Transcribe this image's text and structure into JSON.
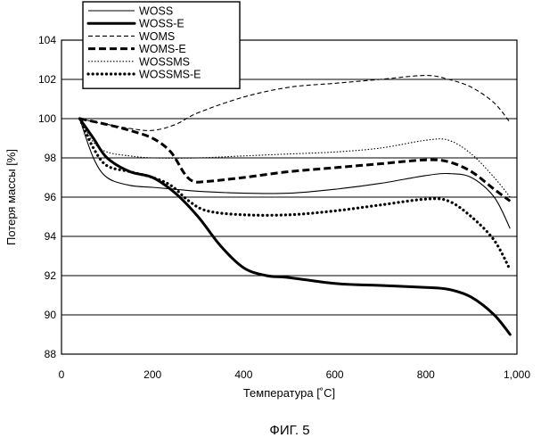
{
  "figure_caption": "ФИГ. 5",
  "chart_data": {
    "type": "line",
    "title": "",
    "xlabel": "Температура [˚C]",
    "ylabel": "Потеря массы [%]",
    "xlim": [
      0,
      1000
    ],
    "ylim": [
      88,
      104
    ],
    "xticks": [
      0,
      200,
      400,
      600,
      800,
      1000
    ],
    "xtick_labels": [
      "0",
      "200",
      "400",
      "600",
      "800",
      "1,000"
    ],
    "yticks": [
      88,
      90,
      92,
      94,
      96,
      98,
      100,
      102,
      104
    ],
    "ytick_labels": [
      "88",
      "90",
      "92",
      "94",
      "96",
      "98",
      "100",
      "102",
      "104"
    ],
    "grid": "horizontal",
    "legend_position": "top-left",
    "series": [
      {
        "name": "WOSS",
        "style": "thin-solid",
        "color": "#000000",
        "x": [
          40,
          70,
          100,
          150,
          200,
          250,
          300,
          400,
          500,
          600,
          700,
          800,
          850,
          900,
          950,
          985
        ],
        "y": [
          100.0,
          98.0,
          97.0,
          96.6,
          96.5,
          96.4,
          96.3,
          96.2,
          96.2,
          96.4,
          96.7,
          97.1,
          97.2,
          97.0,
          96.0,
          94.4
        ]
      },
      {
        "name": "WOSS-E",
        "style": "thick-solid",
        "color": "#000000",
        "x": [
          40,
          70,
          100,
          150,
          200,
          250,
          300,
          350,
          400,
          450,
          500,
          600,
          700,
          800,
          850,
          900,
          950,
          985
        ],
        "y": [
          100.0,
          99.0,
          98.0,
          97.3,
          97.0,
          96.2,
          95.0,
          93.5,
          92.4,
          92.0,
          91.9,
          91.6,
          91.5,
          91.4,
          91.3,
          90.9,
          90.0,
          89.0
        ]
      },
      {
        "name": "WOMS",
        "style": "thin-dashed",
        "color": "#000000",
        "x": [
          40,
          80,
          150,
          200,
          250,
          300,
          400,
          500,
          600,
          700,
          800,
          850,
          900,
          950,
          985
        ],
        "y": [
          100.0,
          99.8,
          99.5,
          99.4,
          99.7,
          100.3,
          101.1,
          101.6,
          101.8,
          102.0,
          102.2,
          102.0,
          101.6,
          100.8,
          99.8
        ]
      },
      {
        "name": "WOMS-E",
        "style": "thick-dashed",
        "color": "#000000",
        "x": [
          40,
          100,
          150,
          200,
          240,
          270,
          290,
          320,
          400,
          500,
          600,
          700,
          800,
          850,
          900,
          950,
          985
        ],
        "y": [
          100.0,
          99.7,
          99.4,
          99.0,
          98.3,
          97.2,
          96.8,
          96.8,
          97.0,
          97.3,
          97.5,
          97.7,
          97.9,
          97.8,
          97.3,
          96.4,
          95.8
        ]
      },
      {
        "name": "WOSSMS",
        "style": "thin-dotted",
        "color": "#000000",
        "x": [
          40,
          70,
          100,
          150,
          200,
          300,
          400,
          500,
          600,
          700,
          800,
          850,
          900,
          950,
          985
        ],
        "y": [
          100.0,
          98.8,
          98.3,
          98.1,
          98.0,
          98.0,
          98.1,
          98.2,
          98.3,
          98.5,
          98.9,
          98.9,
          98.2,
          97.0,
          96.0
        ]
      },
      {
        "name": "WOSSMS-E",
        "style": "thick-dotted",
        "color": "#000000",
        "x": [
          40,
          70,
          100,
          150,
          200,
          240,
          280,
          320,
          400,
          500,
          600,
          700,
          800,
          850,
          900,
          950,
          985
        ],
        "y": [
          100.0,
          98.5,
          97.6,
          97.3,
          97.0,
          96.6,
          95.8,
          95.3,
          95.1,
          95.1,
          95.3,
          95.6,
          95.9,
          95.8,
          95.0,
          93.8,
          92.3
        ]
      }
    ]
  }
}
